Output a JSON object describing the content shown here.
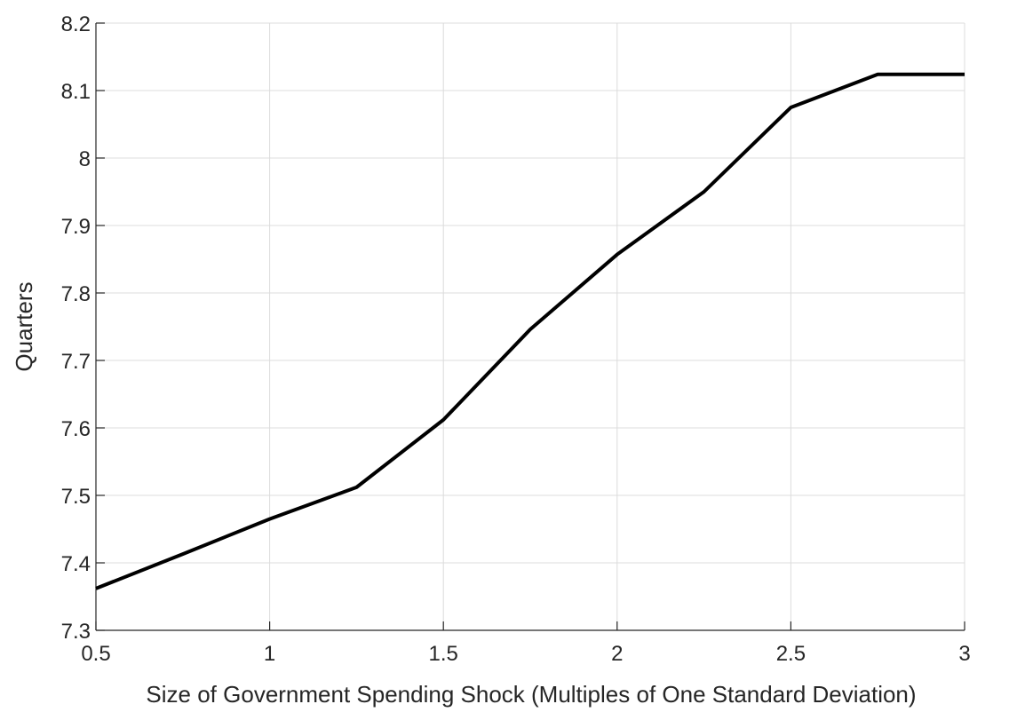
{
  "chart_data": {
    "type": "line",
    "title": "",
    "xlabel": "Size of Government Spending Shock (Multiples of One Standard Deviation)",
    "ylabel": "Quarters",
    "xlim": [
      0.5,
      3
    ],
    "ylim": [
      7.3,
      8.2
    ],
    "xticks": [
      0.5,
      1,
      1.5,
      2,
      2.5,
      3
    ],
    "xtick_labels": [
      "0.5",
      "1",
      "1.5",
      "2",
      "2.5",
      "3"
    ],
    "yticks": [
      7.3,
      7.4,
      7.5,
      7.6,
      7.7,
      7.8,
      7.9,
      8,
      8.1,
      8.2
    ],
    "ytick_labels": [
      "7.3",
      "7.4",
      "7.5",
      "7.6",
      "7.7",
      "7.8",
      "7.9",
      "8",
      "8.1",
      "8.2"
    ],
    "grid": true,
    "legend": "none",
    "series": [
      {
        "color": "#000000",
        "x": [
          0.5,
          0.75,
          1,
          1.25,
          1.5,
          1.75,
          2,
          2.25,
          2.5,
          2.75,
          3
        ],
        "y": [
          7.362,
          7.413,
          7.465,
          7.512,
          7.612,
          7.746,
          7.857,
          7.95,
          8.075,
          8.124,
          8.124
        ]
      }
    ]
  }
}
